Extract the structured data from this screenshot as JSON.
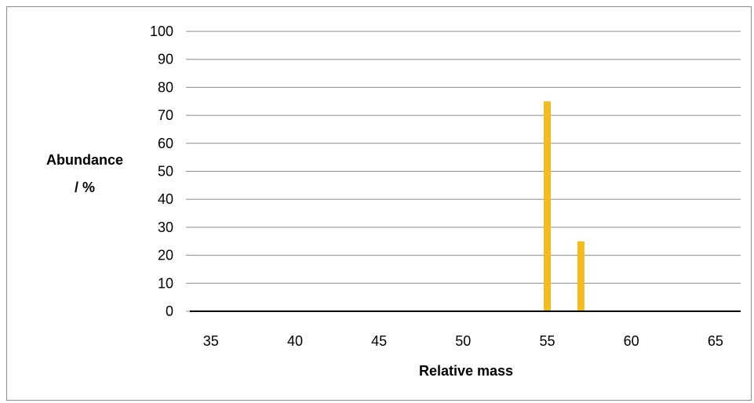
{
  "chart_data": {
    "type": "bar",
    "title": "",
    "xlabel": "Relative mass",
    "ylabel_lines": [
      "Abundance",
      "/ %"
    ],
    "xlim": [
      33.75,
      66.5
    ],
    "ylim": [
      0,
      100
    ],
    "x_ticks": [
      35,
      40,
      45,
      50,
      55,
      60,
      65
    ],
    "y_ticks": [
      0,
      10,
      20,
      30,
      40,
      50,
      60,
      70,
      80,
      90,
      100
    ],
    "grid": "horizontal",
    "bar_color": "#f4bb1c",
    "series": [
      {
        "x": [
          55,
          57
        ],
        "values": [
          75,
          25
        ]
      }
    ]
  }
}
